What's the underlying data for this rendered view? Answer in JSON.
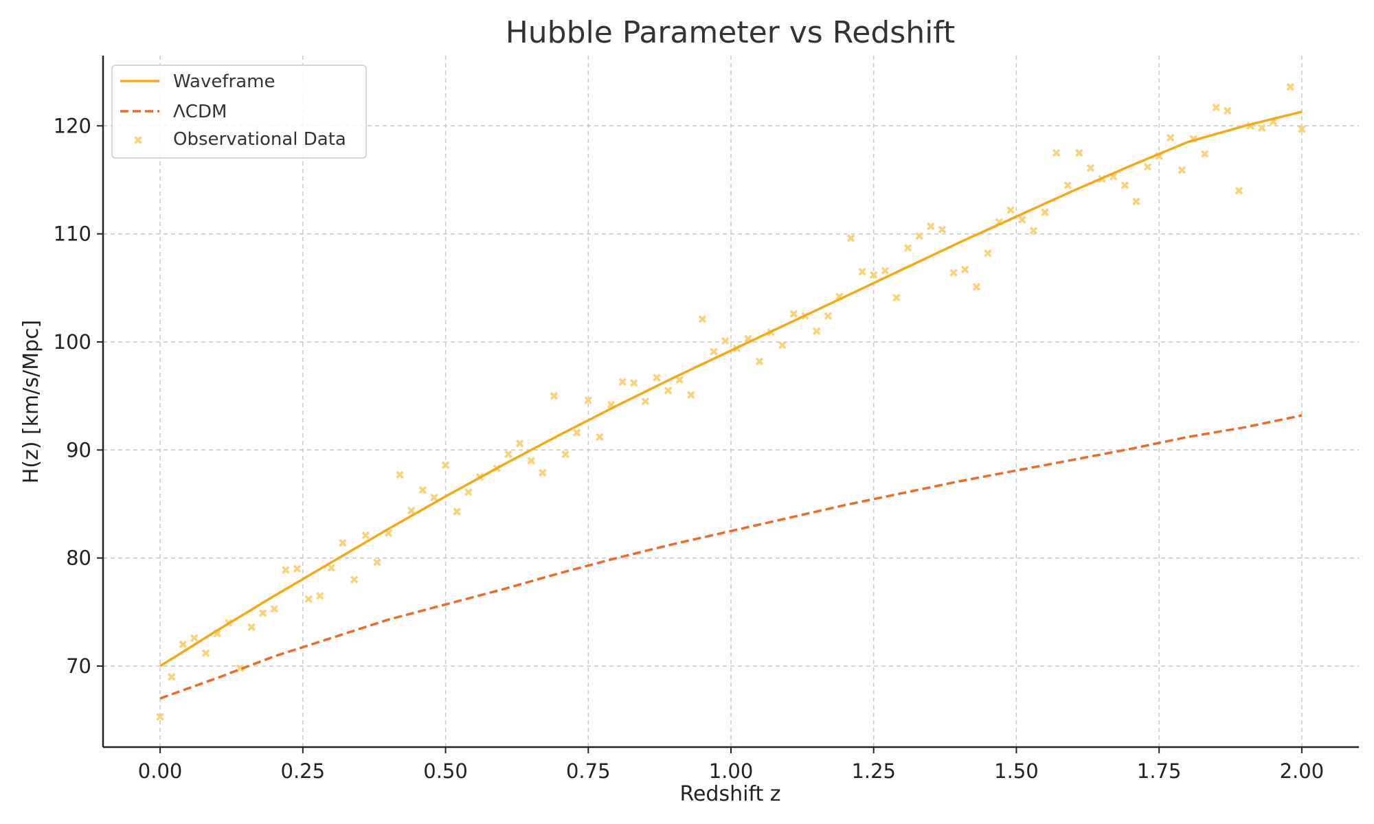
{
  "chart_data": {
    "type": "line",
    "title": "Hubble Parameter vs Redshift",
    "xlabel": "Redshift z",
    "ylabel": "H(z) [km/s/Mpc]",
    "xlim": [
      -0.1,
      2.1
    ],
    "ylim": [
      62.5,
      126.5
    ],
    "xticks": [
      0.0,
      0.25,
      0.5,
      0.75,
      1.0,
      1.25,
      1.5,
      1.75,
      2.0
    ],
    "xtick_labels": [
      "0.00",
      "0.25",
      "0.50",
      "0.75",
      "1.00",
      "1.25",
      "1.50",
      "1.75",
      "2.00"
    ],
    "yticks": [
      70,
      80,
      90,
      100,
      110,
      120
    ],
    "ytick_labels": [
      "70",
      "80",
      "90",
      "100",
      "110",
      "120"
    ],
    "grid": true,
    "legend_position": "top-left",
    "colors": {
      "waveframe": "#f5a914",
      "lcdm": "#ee6a28",
      "observational": "#f9d275",
      "axis": "#222222"
    },
    "series": [
      {
        "name": "Waveframe",
        "type": "line",
        "style": "solid",
        "x": [
          0.0,
          0.1,
          0.2,
          0.3,
          0.4,
          0.5,
          0.6,
          0.7,
          0.8,
          0.9,
          1.0,
          1.1,
          1.2,
          1.3,
          1.4,
          1.5,
          1.6,
          1.7,
          1.8,
          1.9,
          2.0
        ],
        "y": [
          70.0,
          73.3,
          76.5,
          79.6,
          82.7,
          85.7,
          88.6,
          91.4,
          94.1,
          96.7,
          99.2,
          101.7,
          104.2,
          106.7,
          109.2,
          111.6,
          114.0,
          116.3,
          118.5,
          120.0,
          121.3
        ]
      },
      {
        "name": "ΛCDM",
        "type": "line",
        "style": "dashed",
        "x": [
          0.0,
          0.1,
          0.2,
          0.3,
          0.4,
          0.5,
          0.6,
          0.7,
          0.8,
          0.9,
          1.0,
          1.1,
          1.2,
          1.3,
          1.4,
          1.5,
          1.6,
          1.7,
          1.8,
          1.9,
          2.0
        ],
        "y": [
          67.0,
          68.9,
          70.9,
          72.6,
          74.3,
          75.7,
          77.1,
          78.6,
          80.0,
          81.3,
          82.5,
          83.7,
          84.9,
          86.0,
          87.1,
          88.1,
          89.1,
          90.1,
          91.2,
          92.1,
          93.2
        ]
      },
      {
        "name": "Observational Data",
        "type": "scatter",
        "marker": "x",
        "x": [
          0.0,
          0.02,
          0.04,
          0.06,
          0.08,
          0.1,
          0.12,
          0.14,
          0.16,
          0.18,
          0.2,
          0.22,
          0.24,
          0.26,
          0.28,
          0.3,
          0.32,
          0.34,
          0.36,
          0.38,
          0.4,
          0.42,
          0.44,
          0.46,
          0.48,
          0.5,
          0.52,
          0.54,
          0.56,
          0.59,
          0.61,
          0.63,
          0.65,
          0.67,
          0.69,
          0.71,
          0.73,
          0.75,
          0.77,
          0.79,
          0.81,
          0.83,
          0.85,
          0.87,
          0.89,
          0.91,
          0.93,
          0.95,
          0.97,
          0.99,
          1.01,
          1.03,
          1.05,
          1.07,
          1.09,
          1.11,
          1.13,
          1.15,
          1.17,
          1.19,
          1.21,
          1.23,
          1.25,
          1.27,
          1.29,
          1.31,
          1.33,
          1.35,
          1.37,
          1.39,
          1.41,
          1.43,
          1.45,
          1.47,
          1.49,
          1.51,
          1.53,
          1.55,
          1.57,
          1.59,
          1.61,
          1.63,
          1.65,
          1.67,
          1.69,
          1.71,
          1.73,
          1.75,
          1.77,
          1.79,
          1.81,
          1.83,
          1.85,
          1.87,
          1.89,
          1.91,
          1.93,
          1.95,
          1.98,
          2.0
        ],
        "y": [
          65.3,
          69.0,
          72.0,
          72.6,
          71.2,
          73.0,
          74.0,
          69.8,
          73.6,
          74.9,
          75.3,
          78.9,
          79.0,
          76.2,
          76.5,
          79.1,
          81.4,
          78.0,
          82.1,
          79.6,
          82.3,
          87.7,
          84.4,
          86.3,
          85.6,
          88.6,
          84.3,
          86.1,
          87.5,
          88.3,
          89.6,
          90.6,
          89.0,
          87.9,
          95.0,
          89.6,
          91.6,
          94.6,
          91.2,
          94.2,
          96.3,
          96.2,
          94.5,
          96.7,
          95.5,
          96.5,
          95.1,
          102.1,
          99.1,
          100.1,
          99.4,
          100.3,
          98.2,
          100.9,
          99.7,
          102.6,
          102.4,
          101.0,
          102.4,
          104.2,
          109.6,
          106.5,
          106.2,
          106.6,
          104.1,
          108.7,
          109.8,
          110.7,
          110.4,
          106.4,
          106.7,
          105.1,
          108.2,
          111.1,
          112.2,
          111.3,
          110.3,
          112.0,
          117.5,
          114.5,
          117.5,
          116.1,
          115.1,
          115.3,
          114.5,
          113.0,
          116.2,
          117.2,
          118.9,
          115.9,
          118.8,
          117.4,
          121.7,
          121.4,
          114.0,
          120.0,
          119.8,
          120.4,
          123.6,
          119.7
        ]
      }
    ]
  }
}
